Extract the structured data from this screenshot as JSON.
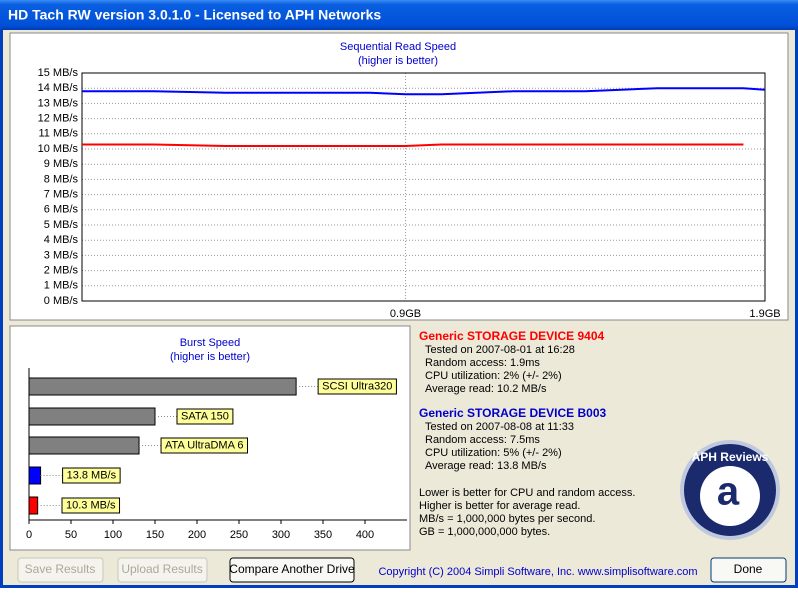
{
  "window": {
    "title": "HD Tach RW version 3.0.1.0 - Licensed to APH Networks"
  },
  "chart_data": [
    {
      "type": "line",
      "title": "Sequential Read Speed",
      "subtitle": "(higher is better)",
      "x": [
        0,
        0.2,
        0.4,
        0.6,
        0.8,
        0.9,
        1.0,
        1.2,
        1.4,
        1.5,
        1.6,
        1.7,
        1.84,
        1.9
      ],
      "series": [
        {
          "name": "Generic STORAGE DEVICE B003",
          "color": "#0000ff",
          "values": [
            13.8,
            13.8,
            13.7,
            13.7,
            13.7,
            13.6,
            13.6,
            13.8,
            13.8,
            13.9,
            14.0,
            14.0,
            14.0,
            13.9
          ]
        },
        {
          "name": "Generic STORAGE DEVICE 9404",
          "color": "#ff0000",
          "values": [
            10.3,
            10.3,
            10.2,
            10.2,
            10.2,
            10.2,
            10.3,
            10.3,
            10.3,
            10.3,
            10.3,
            10.3,
            10.3,
            null
          ]
        }
      ],
      "xlim": [
        0,
        1.9
      ],
      "xticks": [
        {
          "value": 0.9,
          "label": "0.9GB"
        },
        {
          "value": 1.9,
          "label": "1.9GB"
        }
      ],
      "ylim": [
        0,
        15
      ],
      "yticks": [
        {
          "value": 0,
          "label": "0 MB/s"
        },
        {
          "value": 1,
          "label": "1 MB/s"
        },
        {
          "value": 2,
          "label": "2 MB/s"
        },
        {
          "value": 3,
          "label": "3 MB/s"
        },
        {
          "value": 4,
          "label": "4 MB/s"
        },
        {
          "value": 5,
          "label": "5 MB/s"
        },
        {
          "value": 6,
          "label": "6 MB/s"
        },
        {
          "value": 7,
          "label": "7 MB/s"
        },
        {
          "value": 8,
          "label": "8 MB/s"
        },
        {
          "value": 9,
          "label": "9 MB/s"
        },
        {
          "value": 10,
          "label": "10 MB/s"
        },
        {
          "value": 11,
          "label": "11 MB/s"
        },
        {
          "value": 12,
          "label": "12 MB/s"
        },
        {
          "value": 13,
          "label": "13 MB/s"
        },
        {
          "value": 14,
          "label": "14 MB/s"
        },
        {
          "value": 15,
          "label": "15 MB/s"
        }
      ],
      "grid": true
    },
    {
      "type": "hbar",
      "title": "Burst Speed",
      "subtitle": "(higher is better)",
      "categories": [
        "SCSI Ultra320",
        "SATA 150",
        "ATA UltraDMA 6",
        null,
        null
      ],
      "values": [
        318,
        150,
        131,
        13.8,
        10.3
      ],
      "value_labels": [
        null,
        null,
        null,
        "13.8 MB/s",
        "10.3 MB/s"
      ],
      "colors": [
        "#808080",
        "#808080",
        "#808080",
        "#0000ff",
        "#ff0000"
      ],
      "xlim": [
        0,
        450
      ],
      "xticks": [
        0,
        50,
        100,
        150,
        200,
        250,
        300,
        350,
        400
      ]
    }
  ],
  "devices": [
    {
      "name": "Generic STORAGE DEVICE 9404",
      "color": "#ff0000",
      "lines": [
        "Tested on 2007-08-01 at 16:28",
        "Random access: 1.9ms",
        "CPU utilization: 2% (+/- 2%)",
        "Average read: 10.2 MB/s"
      ]
    },
    {
      "name": "Generic STORAGE DEVICE B003",
      "color": "#0000cc",
      "lines": [
        "Tested on 2007-08-08 at 11:33",
        "Random access: 7.5ms",
        "CPU utilization: 5% (+/- 2%)",
        "Average read: 13.8 MB/s"
      ]
    }
  ],
  "notes": [
    "Lower is better for CPU and random access.",
    "Higher is better for average read.",
    "MB/s = 1,000,000 bytes per second.",
    "GB = 1,000,000,000 bytes."
  ],
  "logo": {
    "ring": "APH Reviews",
    "mark": "a"
  },
  "buttons": {
    "save": "Save Results",
    "upload": "Upload Results",
    "compare": "Compare Another Drive",
    "done": "Done"
  },
  "copyright": "Copyright (C) 2004 Simpli Software, Inc. www.simplisoftware.com"
}
